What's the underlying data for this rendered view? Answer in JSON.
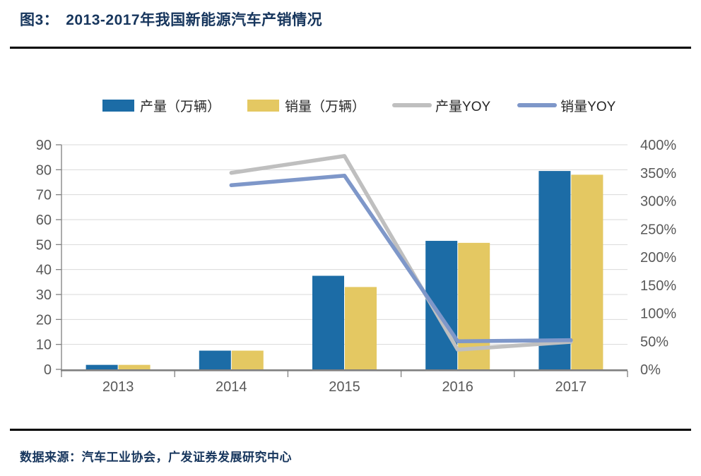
{
  "header": {
    "figure_label": "图3：",
    "title": "2013-2017年我国新能源汽车产销情况",
    "title_color": "#17365D"
  },
  "legend": {
    "items": [
      {
        "key": "production-bar",
        "label": "产量（万辆）",
        "swatch": "rect",
        "color": "#1C6CA6"
      },
      {
        "key": "sales-bar",
        "label": "销量（万辆）",
        "swatch": "rect",
        "color": "#E4C862"
      },
      {
        "key": "production-yoy-line",
        "label": "产量YOY",
        "swatch": "line",
        "color": "#BFBFBF"
      },
      {
        "key": "sales-yoy-line",
        "label": "销量YOY",
        "swatch": "line",
        "color": "#7E97C9"
      }
    ]
  },
  "chart_data": {
    "type": "combo-bar-line",
    "title": "2013-2017年我国新能源汽车产销情况",
    "categories": [
      "2013",
      "2014",
      "2015",
      "2016",
      "2017"
    ],
    "series": [
      {
        "key": "production-bar",
        "name": "产量（万辆）",
        "kind": "bar",
        "axis": "left",
        "unit": "万辆",
        "color": "#1C6CA6",
        "values": [
          1.8,
          7.5,
          37.5,
          51.5,
          79.5
        ]
      },
      {
        "key": "sales-bar",
        "name": "销量（万辆）",
        "kind": "bar",
        "axis": "left",
        "unit": "万辆",
        "color": "#E4C862",
        "values": [
          1.8,
          7.5,
          33.0,
          50.7,
          78.0
        ]
      },
      {
        "key": "production-yoy-line",
        "name": "产量YOY",
        "kind": "line",
        "axis": "right",
        "unit": "%",
        "color": "#BFBFBF",
        "values": [
          null,
          350,
          380,
          35,
          49
        ]
      },
      {
        "key": "sales-yoy-line",
        "name": "销量YOY",
        "kind": "line",
        "axis": "right",
        "unit": "%",
        "color": "#7E97C9",
        "values": [
          null,
          328,
          345,
          50,
          52
        ]
      }
    ],
    "left_axis": {
      "min": 0,
      "max": 90,
      "step": 10,
      "tick_labels": [
        "0",
        "10",
        "20",
        "30",
        "40",
        "50",
        "60",
        "70",
        "80",
        "90"
      ]
    },
    "right_axis": {
      "min": 0,
      "max": 400,
      "step": 50,
      "tick_labels": [
        "0%",
        "50%",
        "100%",
        "150%",
        "200%",
        "250%",
        "300%",
        "350%",
        "400%"
      ]
    },
    "x_axis": {
      "labels": [
        "2013",
        "2014",
        "2015",
        "2016",
        "2017"
      ]
    },
    "grid": true,
    "legend_position": "top",
    "style": {
      "grid_color": "#D9D9D9",
      "axis_line_color": "#808080",
      "tick_label_color": "#595959"
    }
  },
  "footer": {
    "source_label": "数据来源：",
    "source_text": "汽车工业协会，广发证券发展研究中心"
  }
}
